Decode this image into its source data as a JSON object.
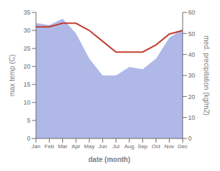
{
  "chart_data": {
    "type": "line",
    "categories": [
      "Jan",
      "Feb",
      "Mar",
      "Apr",
      "May",
      "Jun",
      "Jul",
      "Aug",
      "Sep",
      "Oct",
      "Nov",
      "Dec"
    ],
    "series": [
      {
        "type": "area",
        "color": "#b0b8e8",
        "axis": "y2",
        "values": [
          55,
          54,
          57,
          50,
          38,
          30,
          30,
          34,
          33,
          38,
          48,
          52
        ]
      },
      {
        "type": "line",
        "color": "#c0392b",
        "values": [
          31,
          31,
          32,
          32,
          30,
          27,
          24,
          24,
          24,
          26,
          29,
          30
        ]
      }
    ],
    "xlabel": "date (month)",
    "ylabel": "max temp (C)",
    "y2label": "med. precipitation (kg/m2)",
    "ylim": [
      0,
      35
    ],
    "yticks": [
      0,
      5,
      10,
      15,
      20,
      25,
      30,
      35
    ],
    "y2lim": [
      0,
      60
    ],
    "y2ticks": [
      0,
      10,
      20,
      30,
      40,
      50,
      60
    ],
    "grid": false
  }
}
